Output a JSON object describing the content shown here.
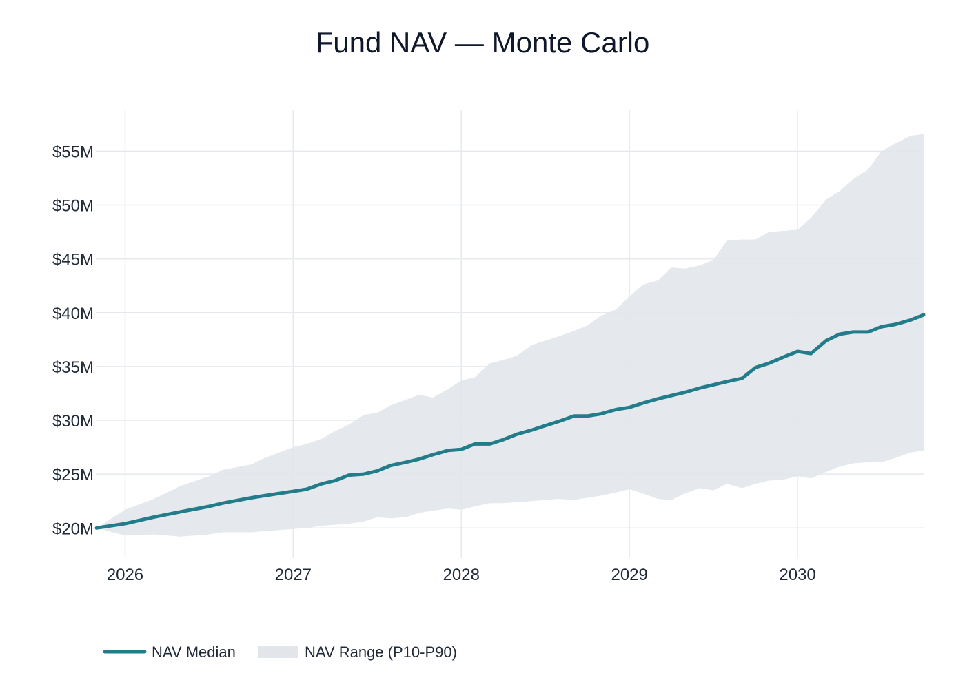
{
  "chart_data": {
    "type": "line",
    "title": "Fund NAV — Monte Carlo",
    "xlabel": "",
    "ylabel": "",
    "x_ticks": [
      "2026",
      "2027",
      "2028",
      "2029",
      "2030"
    ],
    "y_ticks": [
      "$20M",
      "$25M",
      "$30M",
      "$35M",
      "$40M",
      "$45M",
      "$50M",
      "$55M"
    ],
    "xlim": [
      2025.83,
      2030.75
    ],
    "ylim": [
      17.2,
      58.8
    ],
    "grid": true,
    "legend_position": "bottom-left",
    "series": [
      {
        "name": "NAV Median",
        "kind": "line",
        "color": "#227c89",
        "x": [
          2025.83,
          2026.0,
          2026.17,
          2026.33,
          2026.5,
          2026.58,
          2026.75,
          2026.83,
          2027.0,
          2027.08,
          2027.17,
          2027.25,
          2027.33,
          2027.42,
          2027.5,
          2027.58,
          2027.67,
          2027.75,
          2027.83,
          2027.92,
          2028.0,
          2028.08,
          2028.17,
          2028.25,
          2028.33,
          2028.42,
          2028.5,
          2028.58,
          2028.67,
          2028.75,
          2028.83,
          2028.92,
          2029.0,
          2029.08,
          2029.17,
          2029.25,
          2029.33,
          2029.42,
          2029.5,
          2029.58,
          2029.67,
          2029.75,
          2029.83,
          2029.92,
          2030.0,
          2030.08,
          2030.17,
          2030.25,
          2030.33,
          2030.42,
          2030.5,
          2030.58,
          2030.67,
          2030.75
        ],
        "values": [
          20.0,
          20.4,
          21.0,
          21.5,
          22.0,
          22.3,
          22.8,
          23.0,
          23.4,
          23.6,
          24.1,
          24.4,
          24.9,
          25.0,
          25.3,
          25.8,
          26.1,
          26.4,
          26.8,
          27.2,
          27.3,
          27.8,
          27.8,
          28.2,
          28.7,
          29.1,
          29.5,
          29.9,
          30.4,
          30.4,
          30.6,
          31.0,
          31.2,
          31.6,
          32.0,
          32.3,
          32.6,
          33.0,
          33.3,
          33.6,
          33.9,
          34.9,
          35.3,
          35.9,
          36.4,
          36.2,
          37.4,
          38.0,
          38.2,
          38.2,
          38.7,
          38.9,
          39.3,
          39.8
        ]
      },
      {
        "name": "NAV Range (P10-P90)",
        "kind": "band",
        "color": "#e2e6ea",
        "x": [
          2025.83,
          2026.0,
          2026.17,
          2026.33,
          2026.5,
          2026.58,
          2026.75,
          2026.83,
          2027.0,
          2027.08,
          2027.17,
          2027.25,
          2027.33,
          2027.42,
          2027.5,
          2027.58,
          2027.67,
          2027.75,
          2027.83,
          2027.92,
          2028.0,
          2028.08,
          2028.17,
          2028.25,
          2028.33,
          2028.42,
          2028.5,
          2028.58,
          2028.67,
          2028.75,
          2028.83,
          2028.92,
          2029.0,
          2029.08,
          2029.17,
          2029.25,
          2029.33,
          2029.42,
          2029.5,
          2029.58,
          2029.67,
          2029.75,
          2029.83,
          2029.92,
          2030.0,
          2030.08,
          2030.17,
          2030.25,
          2030.33,
          2030.42,
          2030.5,
          2030.58,
          2030.67,
          2030.75
        ],
        "upper": [
          20.0,
          21.7,
          22.7,
          23.9,
          24.8,
          25.4,
          25.9,
          26.5,
          27.5,
          27.8,
          28.3,
          29.0,
          29.6,
          30.5,
          30.7,
          31.4,
          31.9,
          32.4,
          32.1,
          32.9,
          33.7,
          34.0,
          35.3,
          35.6,
          36.0,
          37.0,
          37.4,
          37.8,
          38.3,
          38.8,
          39.7,
          40.3,
          41.5,
          42.6,
          43.0,
          44.2,
          44.1,
          44.4,
          44.9,
          46.7,
          46.8,
          46.8,
          47.5,
          47.6,
          47.7,
          48.8,
          50.5,
          51.3,
          52.4,
          53.3,
          55.0,
          55.7,
          56.4,
          56.6
        ],
        "lower": [
          20.0,
          19.3,
          19.4,
          19.2,
          19.4,
          19.6,
          19.6,
          19.7,
          19.9,
          20.0,
          20.2,
          20.3,
          20.4,
          20.6,
          21.0,
          20.9,
          21.0,
          21.4,
          21.6,
          21.8,
          21.7,
          22.0,
          22.3,
          22.3,
          22.4,
          22.5,
          22.6,
          22.7,
          22.6,
          22.8,
          23.0,
          23.3,
          23.6,
          23.2,
          22.7,
          22.6,
          23.2,
          23.7,
          23.5,
          24.1,
          23.7,
          24.1,
          24.4,
          24.5,
          24.8,
          24.6,
          25.2,
          25.7,
          26.0,
          26.1,
          26.1,
          26.5,
          27.0,
          27.2
        ]
      }
    ]
  }
}
